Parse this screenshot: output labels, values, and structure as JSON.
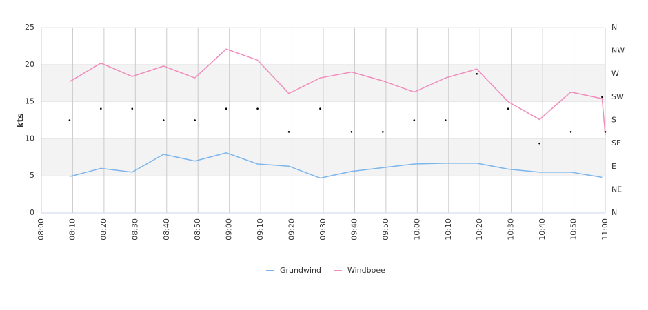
{
  "chart_data": {
    "type": "line",
    "y_label": "kts",
    "xlim": [
      480,
      660
    ],
    "xticks": [
      {
        "value": 480,
        "label": "08:00"
      },
      {
        "value": 490,
        "label": "08:10"
      },
      {
        "value": 500,
        "label": "08:20"
      },
      {
        "value": 510,
        "label": "08:30"
      },
      {
        "value": 520,
        "label": "08:40"
      },
      {
        "value": 530,
        "label": "08:50"
      },
      {
        "value": 540,
        "label": "09:00"
      },
      {
        "value": 550,
        "label": "09:10"
      },
      {
        "value": 560,
        "label": "09:20"
      },
      {
        "value": 570,
        "label": "09:30"
      },
      {
        "value": 580,
        "label": "09:40"
      },
      {
        "value": 590,
        "label": "09:50"
      },
      {
        "value": 600,
        "label": "10:00"
      },
      {
        "value": 610,
        "label": "10:10"
      },
      {
        "value": 620,
        "label": "10:20"
      },
      {
        "value": 630,
        "label": "10:30"
      },
      {
        "value": 640,
        "label": "10:40"
      },
      {
        "value": 650,
        "label": "10:50"
      },
      {
        "value": 660,
        "label": "11:00"
      }
    ],
    "ylim": [
      0,
      25
    ],
    "yticks": [
      0,
      5,
      10,
      15,
      20,
      25
    ],
    "y2lim": [
      0,
      360
    ],
    "y2ticks": [
      {
        "value": 0,
        "label": "N"
      },
      {
        "value": 45,
        "label": "NE"
      },
      {
        "value": 90,
        "label": "E"
      },
      {
        "value": 135,
        "label": "SE"
      },
      {
        "value": 180,
        "label": "S"
      },
      {
        "value": 225,
        "label": "SW"
      },
      {
        "value": 270,
        "label": "W"
      },
      {
        "value": 315,
        "label": "NW"
      },
      {
        "value": 360,
        "label": "N"
      }
    ],
    "grid": true,
    "legend": "bottom",
    "series": [
      {
        "name": "Grundwind",
        "color": "#7cb5ec",
        "x": [
          489,
          499,
          509,
          519,
          529,
          539,
          549,
          559,
          569,
          579,
          589,
          599,
          609,
          619,
          629,
          639,
          649,
          659
        ],
        "values": [
          4.9,
          6.0,
          5.5,
          7.9,
          7.0,
          8.1,
          6.6,
          6.3,
          4.7,
          5.6,
          6.1,
          6.6,
          6.7,
          6.7,
          5.9,
          5.5,
          5.5,
          4.8
        ]
      },
      {
        "name": "Windboee",
        "color": "#f08cbb",
        "x": [
          489,
          499,
          509,
          519,
          529,
          539,
          549,
          559,
          569,
          579,
          589,
          599,
          609,
          619,
          629,
          639,
          649,
          659,
          660
        ],
        "values": [
          17.7,
          20.2,
          18.4,
          19.8,
          18.2,
          22.1,
          20.6,
          16.1,
          18.2,
          19.0,
          17.8,
          16.3,
          18.2,
          19.4,
          15.0,
          12.6,
          16.3,
          15.4,
          10.5
        ]
      }
    ],
    "direction": {
      "axis": "y2",
      "color": "#000000",
      "x": [
        489,
        499,
        509,
        519,
        529,
        539,
        549,
        559,
        569,
        579,
        589,
        599,
        609,
        619,
        629,
        639,
        649,
        659,
        660
      ],
      "values": [
        180,
        202.5,
        202.5,
        180,
        180,
        202.5,
        202.5,
        157.5,
        202.5,
        157.5,
        157.5,
        180,
        180,
        270,
        202.5,
        135,
        157.5,
        225,
        157.5
      ]
    }
  }
}
